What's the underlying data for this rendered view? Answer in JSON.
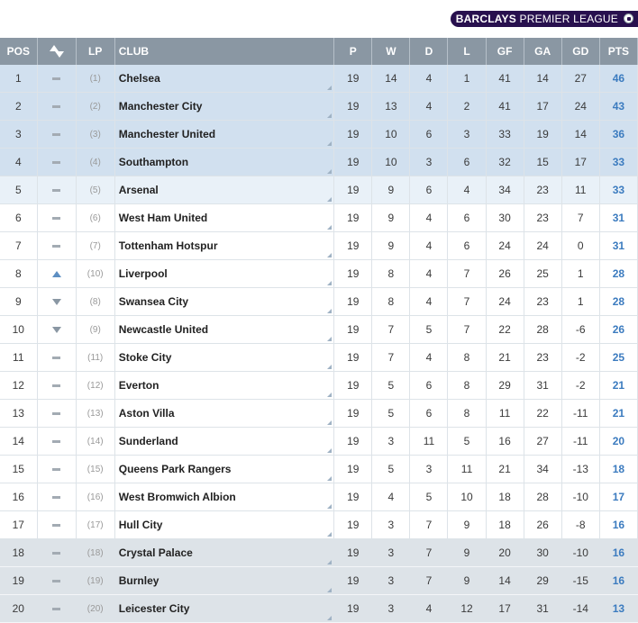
{
  "logo": {
    "part1": "BARCLAYS",
    "part2": " PREMIER LEAGUE"
  },
  "headers": {
    "pos": "POS",
    "lp": "LP",
    "club": "CLUB",
    "p": "P",
    "w": "W",
    "d": "D",
    "l": "L",
    "gf": "GF",
    "ga": "GA",
    "gd": "GD",
    "pts": "PTS"
  },
  "rows": [
    {
      "pos": "1",
      "move": "same",
      "lp": "(1)",
      "club": "Chelsea",
      "p": "19",
      "w": "14",
      "d": "4",
      "l": "1",
      "gf": "41",
      "ga": "14",
      "gd": "27",
      "pts": "46",
      "zone": "cl"
    },
    {
      "pos": "2",
      "move": "same",
      "lp": "(2)",
      "club": "Manchester City",
      "p": "19",
      "w": "13",
      "d": "4",
      "l": "2",
      "gf": "41",
      "ga": "17",
      "gd": "24",
      "pts": "43",
      "zone": "cl"
    },
    {
      "pos": "3",
      "move": "same",
      "lp": "(3)",
      "club": "Manchester United",
      "p": "19",
      "w": "10",
      "d": "6",
      "l": "3",
      "gf": "33",
      "ga": "19",
      "gd": "14",
      "pts": "36",
      "zone": "cl"
    },
    {
      "pos": "4",
      "move": "same",
      "lp": "(4)",
      "club": "Southampton",
      "p": "19",
      "w": "10",
      "d": "3",
      "l": "6",
      "gf": "32",
      "ga": "15",
      "gd": "17",
      "pts": "33",
      "zone": "cl"
    },
    {
      "pos": "5",
      "move": "same",
      "lp": "(5)",
      "club": "Arsenal",
      "p": "19",
      "w": "9",
      "d": "6",
      "l": "4",
      "gf": "34",
      "ga": "23",
      "gd": "11",
      "pts": "33",
      "zone": "el"
    },
    {
      "pos": "6",
      "move": "same",
      "lp": "(6)",
      "club": "West Ham United",
      "p": "19",
      "w": "9",
      "d": "4",
      "l": "6",
      "gf": "30",
      "ga": "23",
      "gd": "7",
      "pts": "31",
      "zone": "mid"
    },
    {
      "pos": "7",
      "move": "same",
      "lp": "(7)",
      "club": "Tottenham Hotspur",
      "p": "19",
      "w": "9",
      "d": "4",
      "l": "6",
      "gf": "24",
      "ga": "24",
      "gd": "0",
      "pts": "31",
      "zone": "mid"
    },
    {
      "pos": "8",
      "move": "up",
      "lp": "(10)",
      "club": "Liverpool",
      "p": "19",
      "w": "8",
      "d": "4",
      "l": "7",
      "gf": "26",
      "ga": "25",
      "gd": "1",
      "pts": "28",
      "zone": "mid"
    },
    {
      "pos": "9",
      "move": "down",
      "lp": "(8)",
      "club": "Swansea City",
      "p": "19",
      "w": "8",
      "d": "4",
      "l": "7",
      "gf": "24",
      "ga": "23",
      "gd": "1",
      "pts": "28",
      "zone": "mid"
    },
    {
      "pos": "10",
      "move": "down",
      "lp": "(9)",
      "club": "Newcastle United",
      "p": "19",
      "w": "7",
      "d": "5",
      "l": "7",
      "gf": "22",
      "ga": "28",
      "gd": "-6",
      "pts": "26",
      "zone": "mid"
    },
    {
      "pos": "11",
      "move": "same",
      "lp": "(11)",
      "club": "Stoke City",
      "p": "19",
      "w": "7",
      "d": "4",
      "l": "8",
      "gf": "21",
      "ga": "23",
      "gd": "-2",
      "pts": "25",
      "zone": "mid"
    },
    {
      "pos": "12",
      "move": "same",
      "lp": "(12)",
      "club": "Everton",
      "p": "19",
      "w": "5",
      "d": "6",
      "l": "8",
      "gf": "29",
      "ga": "31",
      "gd": "-2",
      "pts": "21",
      "zone": "mid"
    },
    {
      "pos": "13",
      "move": "same",
      "lp": "(13)",
      "club": "Aston Villa",
      "p": "19",
      "w": "5",
      "d": "6",
      "l": "8",
      "gf": "11",
      "ga": "22",
      "gd": "-11",
      "pts": "21",
      "zone": "mid"
    },
    {
      "pos": "14",
      "move": "same",
      "lp": "(14)",
      "club": "Sunderland",
      "p": "19",
      "w": "3",
      "d": "11",
      "l": "5",
      "gf": "16",
      "ga": "27",
      "gd": "-11",
      "pts": "20",
      "zone": "mid"
    },
    {
      "pos": "15",
      "move": "same",
      "lp": "(15)",
      "club": "Queens Park Rangers",
      "p": "19",
      "w": "5",
      "d": "3",
      "l": "11",
      "gf": "21",
      "ga": "34",
      "gd": "-13",
      "pts": "18",
      "zone": "mid"
    },
    {
      "pos": "16",
      "move": "same",
      "lp": "(16)",
      "club": "West Bromwich Albion",
      "p": "19",
      "w": "4",
      "d": "5",
      "l": "10",
      "gf": "18",
      "ga": "28",
      "gd": "-10",
      "pts": "17",
      "zone": "mid"
    },
    {
      "pos": "17",
      "move": "same",
      "lp": "(17)",
      "club": "Hull City",
      "p": "19",
      "w": "3",
      "d": "7",
      "l": "9",
      "gf": "18",
      "ga": "26",
      "gd": "-8",
      "pts": "16",
      "zone": "mid"
    },
    {
      "pos": "18",
      "move": "same",
      "lp": "(18)",
      "club": "Crystal Palace",
      "p": "19",
      "w": "3",
      "d": "7",
      "l": "9",
      "gf": "20",
      "ga": "30",
      "gd": "-10",
      "pts": "16",
      "zone": "rel"
    },
    {
      "pos": "19",
      "move": "same",
      "lp": "(19)",
      "club": "Burnley",
      "p": "19",
      "w": "3",
      "d": "7",
      "l": "9",
      "gf": "14",
      "ga": "29",
      "gd": "-15",
      "pts": "16",
      "zone": "rel"
    },
    {
      "pos": "20",
      "move": "same",
      "lp": "(20)",
      "club": "Leicester City",
      "p": "19",
      "w": "3",
      "d": "4",
      "l": "12",
      "gf": "17",
      "ga": "31",
      "gd": "-14",
      "pts": "13",
      "zone": "rel"
    }
  ]
}
